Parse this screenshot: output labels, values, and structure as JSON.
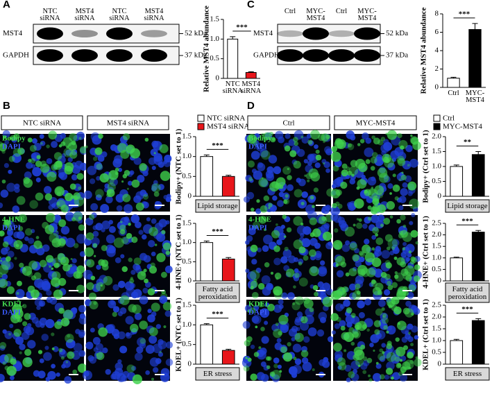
{
  "panels": {
    "A": {
      "letter": "A",
      "lanes": [
        "NTC siRNA",
        "MST4 siRNA",
        "NTC siRNA",
        "MST4 siRNA"
      ],
      "proteins": [
        "MST4",
        "GAPDH"
      ],
      "markers": [
        "52 kDa",
        "37 kDa"
      ]
    },
    "C": {
      "letter": "C",
      "lanes": [
        "Ctrl",
        "MYC-MST4",
        "Ctrl",
        "MYC-MST4"
      ],
      "proteins": [
        "MST4",
        "GAPDH"
      ],
      "markers": [
        "52 kDa",
        "37 kDa"
      ]
    },
    "B": {
      "letter": "B",
      "columns": [
        "NTC siRNA",
        "MST4 siRNA"
      ],
      "stains": [
        [
          "Bodipy",
          "DAPI"
        ],
        [
          "4-HNE",
          "DAPI"
        ],
        [
          "KDEL",
          "DAPI"
        ]
      ],
      "legend": [
        {
          "name": "NTC siRNA",
          "color": "#ffffff"
        },
        {
          "name": "MST4 siRNA",
          "color": "#e8161b"
        }
      ]
    },
    "D": {
      "letter": "D",
      "columns": [
        "Ctrl",
        "MYC-MST4"
      ],
      "stains": [
        [
          "Bodipy",
          "DAPI"
        ],
        [
          "4-HNE",
          "DAPI"
        ],
        [
          "KDEL",
          "DAPI"
        ]
      ],
      "legend": [
        {
          "name": "Ctrl",
          "color": "#ffffff"
        },
        {
          "name": "MYC-MST4",
          "color": "#000000"
        }
      ]
    }
  },
  "chart_data": [
    {
      "type": "bar",
      "ylabel": "Relative MST4 abundance",
      "categories": [
        "NTC siRNA",
        "MST4 siRNA"
      ],
      "values": [
        1.0,
        0.15
      ],
      "errors": [
        0.06,
        0.02
      ],
      "colors": [
        "#ffffff",
        "#e8161b"
      ],
      "ylim": [
        0,
        1.5
      ],
      "yticks": [
        0,
        0.5,
        {
          "value": 1,
          "label": "1.0"
        },
        1.5
      ],
      "annotation": "***"
    },
    {
      "type": "bar",
      "ylabel": "Relative MST4 abundance",
      "categories": [
        "Ctrl",
        "MYC-MST4"
      ],
      "values": [
        1.0,
        6.3
      ],
      "errors": [
        0.1,
        0.65
      ],
      "colors": [
        "#ffffff",
        "#000000"
      ],
      "ylim": [
        0,
        8
      ],
      "yticks": [
        0,
        2,
        4,
        6,
        8
      ],
      "annotation": "***"
    },
    {
      "type": "bar",
      "ylabel": "Bodipy+ (NTC set to 1)",
      "values": [
        1.0,
        0.5
      ],
      "errors": [
        0.04,
        0.03
      ],
      "colors": [
        "#ffffff",
        "#e8161b"
      ],
      "ylim": [
        0,
        1.5
      ],
      "yticks": [
        0,
        0.5,
        {
          "value": 1,
          "label": "1.0"
        },
        1.5
      ],
      "annotation": "***",
      "caption": "Lipid storage"
    },
    {
      "type": "bar",
      "ylabel": "4-HNE+ (NTC set to 1)",
      "values": [
        1.0,
        0.57
      ],
      "errors": [
        0.04,
        0.04
      ],
      "colors": [
        "#ffffff",
        "#e8161b"
      ],
      "ylim": [
        0,
        1.5
      ],
      "yticks": [
        0,
        0.5,
        {
          "value": 1,
          "label": "1.0"
        },
        1.5
      ],
      "annotation": "***",
      "caption": "Fatty acid peroxidation"
    },
    {
      "type": "bar",
      "ylabel": "KDEL+ (NTC set to 1)",
      "values": [
        1.0,
        0.35
      ],
      "errors": [
        0.03,
        0.03
      ],
      "colors": [
        "#ffffff",
        "#e8161b"
      ],
      "ylim": [
        0,
        1.5
      ],
      "yticks": [
        0,
        0.5,
        {
          "value": 1,
          "label": "1.0"
        },
        1.5
      ],
      "annotation": "***",
      "caption": "ER stress"
    },
    {
      "type": "bar",
      "ylabel": "Bodipy+ (Ctrl set to 1)",
      "values": [
        1.0,
        1.4
      ],
      "errors": [
        0.05,
        0.1
      ],
      "colors": [
        "#ffffff",
        "#000000"
      ],
      "ylim": [
        0,
        2
      ],
      "yticks": [
        0,
        0.5,
        {
          "value": 1,
          "label": "1.0"
        },
        1.5,
        {
          "value": 2,
          "label": "2.0"
        }
      ],
      "annotation": "**",
      "caption": "Lipid storage"
    },
    {
      "type": "bar",
      "ylabel": "4-HNE+ (Ctrl set to 1)",
      "values": [
        1.0,
        2.12
      ],
      "errors": [
        0.03,
        0.07
      ],
      "colors": [
        "#ffffff",
        "#000000"
      ],
      "ylim": [
        0,
        2.5
      ],
      "yticks": [
        0,
        0.5,
        {
          "value": 1,
          "label": "1.0"
        },
        1.5,
        {
          "value": 2,
          "label": "2.0"
        },
        2.5
      ],
      "annotation": "***",
      "caption": "Fatty acid peroxidation"
    },
    {
      "type": "bar",
      "ylabel": "KDEL+ (Ctrl set to 1)",
      "values": [
        1.0,
        1.85
      ],
      "errors": [
        0.05,
        0.08
      ],
      "colors": [
        "#ffffff",
        "#000000"
      ],
      "ylim": [
        0,
        2.5
      ],
      "yticks": [
        0,
        0.5,
        {
          "value": 1,
          "label": "1.0"
        },
        1.5,
        {
          "value": 2,
          "label": "2.0"
        },
        2.5
      ],
      "annotation": "***",
      "caption": "ER stress"
    }
  ]
}
